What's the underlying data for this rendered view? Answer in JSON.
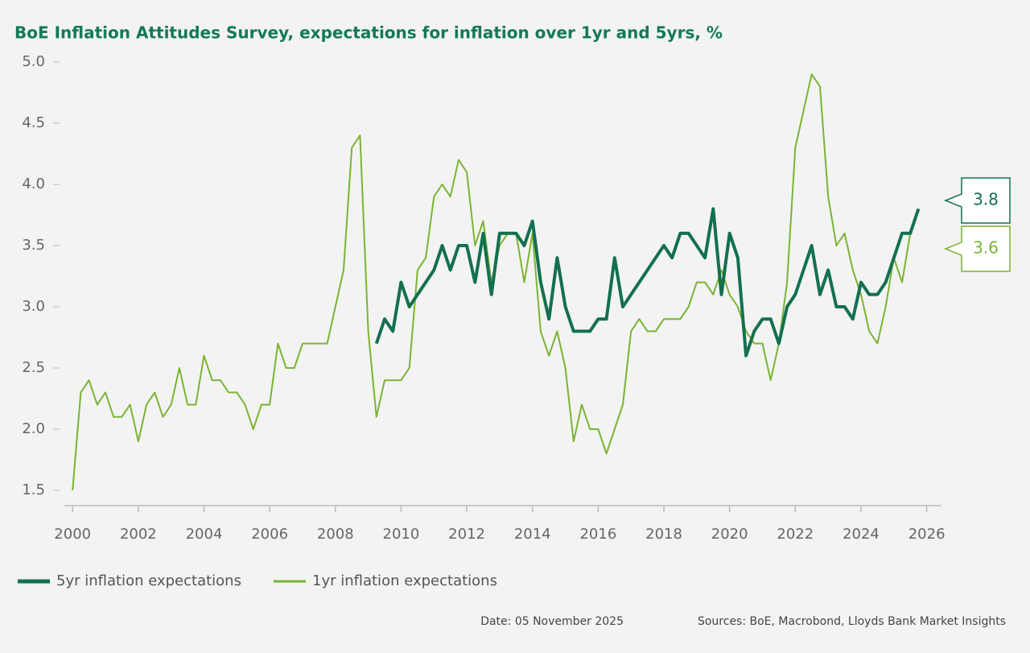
{
  "chart_data": {
    "type": "line",
    "title": "BoE Inflation Attitudes Survey, expectations for inflation over 1yr and 5yrs, %",
    "date_note": "Date: 05 November 2025",
    "source": "Sources: BoE, Macrobond, Lloyds Bank Market Insights",
    "xlim": [
      1999.75,
      2026.45
    ],
    "xticks": [
      2000,
      2002,
      2004,
      2006,
      2008,
      2010,
      2012,
      2014,
      2016,
      2018,
      2020,
      2022,
      2024,
      2026
    ],
    "ylim": [
      1.375,
      5.0
    ],
    "yticks": [
      1.5,
      {
        "value": 2,
        "label": "2.0"
      },
      2.5,
      {
        "value": 3,
        "label": "3.0"
      },
      3.5,
      {
        "value": 4,
        "label": "4.0"
      },
      4.5,
      {
        "value": 5,
        "label": "5.0"
      }
    ],
    "grid": false,
    "series": [
      {
        "name": "5yr inflation expectations",
        "color": "#13704f",
        "width": 4,
        "last_label": "3.8",
        "x": [
          2009.25,
          2009.5,
          2009.75,
          2010.0,
          2010.25,
          2010.5,
          2010.75,
          2011.0,
          2011.25,
          2011.5,
          2011.75,
          2012.0,
          2012.25,
          2012.5,
          2012.75,
          2013.0,
          2013.25,
          2013.5,
          2013.75,
          2014.0,
          2014.25,
          2014.5,
          2014.75,
          2015.0,
          2015.25,
          2015.5,
          2015.75,
          2016.0,
          2016.25,
          2016.5,
          2016.75,
          2018.0,
          2018.25,
          2018.5,
          2018.75,
          2019.0,
          2019.25,
          2019.5,
          2019.75,
          2020.0,
          2020.25,
          2020.5,
          2020.75,
          2021.0,
          2021.25,
          2021.5,
          2021.75,
          2022.0,
          2022.25,
          2022.5,
          2022.75,
          2023.0,
          2023.25,
          2023.5,
          2023.75,
          2024.0,
          2024.25,
          2024.5,
          2024.75,
          2025.0,
          2025.25,
          2025.5,
          2025.75
        ],
        "values": [
          2.7,
          2.9,
          2.8,
          3.2,
          3.0,
          3.1,
          3.2,
          3.3,
          3.5,
          3.3,
          3.5,
          3.5,
          3.2,
          3.6,
          3.1,
          3.6,
          3.6,
          3.6,
          3.5,
          3.7,
          3.2,
          2.9,
          3.4,
          3.0,
          2.8,
          2.8,
          2.8,
          2.9,
          2.9,
          3.4,
          3.0,
          3.5,
          3.4,
          3.6,
          3.6,
          3.5,
          3.4,
          3.8,
          3.1,
          3.6,
          3.4,
          2.6,
          2.8,
          2.9,
          2.9,
          2.7,
          3.0,
          3.1,
          3.3,
          3.5,
          3.1,
          3.3,
          3.0,
          3.0,
          2.9,
          3.2,
          3.1,
          3.1,
          3.2,
          3.4,
          3.6,
          3.6,
          3.8
        ]
      },
      {
        "name": "1yr inflation expectations",
        "color": "#7ab433",
        "width": 2,
        "last_label": "3.6",
        "x": [
          2000.0,
          2000.25,
          2000.5,
          2000.75,
          2001.0,
          2001.25,
          2001.5,
          2001.75,
          2002.0,
          2002.25,
          2002.5,
          2002.75,
          2003.0,
          2003.25,
          2003.5,
          2003.75,
          2004.0,
          2004.25,
          2004.5,
          2004.75,
          2005.0,
          2005.25,
          2005.5,
          2005.75,
          2006.0,
          2006.25,
          2006.5,
          2006.75,
          2007.0,
          2007.25,
          2007.5,
          2007.75,
          2008.0,
          2008.25,
          2008.5,
          2008.75,
          2009.0,
          2009.25,
          2009.5,
          2009.75,
          2010.0,
          2010.25,
          2010.5,
          2010.75,
          2011.0,
          2011.25,
          2011.5,
          2011.75,
          2012.0,
          2012.25,
          2012.5,
          2012.75,
          2013.0,
          2013.25,
          2013.5,
          2013.75,
          2014.0,
          2014.25,
          2014.5,
          2014.75,
          2015.0,
          2015.25,
          2015.5,
          2015.75,
          2016.0,
          2016.25,
          2016.5,
          2016.75,
          2017.0,
          2017.25,
          2017.5,
          2017.75,
          2018.0,
          2018.25,
          2018.5,
          2018.75,
          2019.0,
          2019.25,
          2019.5,
          2019.75,
          2020.0,
          2020.25,
          2020.5,
          2020.75,
          2021.0,
          2021.25,
          2021.5,
          2021.75,
          2022.0,
          2022.25,
          2022.5,
          2022.75,
          2023.0,
          2023.25,
          2023.5,
          2023.75,
          2024.0,
          2024.25,
          2024.5,
          2024.75,
          2025.0,
          2025.25,
          2025.5
        ],
        "values": [
          1.5,
          2.3,
          2.4,
          2.2,
          2.3,
          2.1,
          2.1,
          2.2,
          1.9,
          2.2,
          2.3,
          2.1,
          2.2,
          2.5,
          2.2,
          2.2,
          2.6,
          2.4,
          2.4,
          2.3,
          2.3,
          2.2,
          2.0,
          2.2,
          2.2,
          2.7,
          2.5,
          2.5,
          2.7,
          2.7,
          2.7,
          2.7,
          3.0,
          3.3,
          4.3,
          4.4,
          2.8,
          2.1,
          2.4,
          2.4,
          2.4,
          2.5,
          3.3,
          3.4,
          3.9,
          4.0,
          3.9,
          4.2,
          4.1,
          3.5,
          3.7,
          3.2,
          3.5,
          3.6,
          3.6,
          3.2,
          3.6,
          2.8,
          2.6,
          2.8,
          2.5,
          1.9,
          2.2,
          2.0,
          2.0,
          1.8,
          2.0,
          2.2,
          2.8,
          2.9,
          2.8,
          2.8,
          2.9,
          2.9,
          2.9,
          3.0,
          3.2,
          3.2,
          3.1,
          3.3,
          3.1,
          3.0,
          2.8,
          2.7,
          2.7,
          2.4,
          2.7,
          3.2,
          4.3,
          4.6,
          4.9,
          4.8,
          3.9,
          3.5,
          3.6,
          3.3,
          3.1,
          2.8,
          2.7,
          3.0,
          3.4,
          3.2,
          3.6
        ]
      }
    ]
  }
}
